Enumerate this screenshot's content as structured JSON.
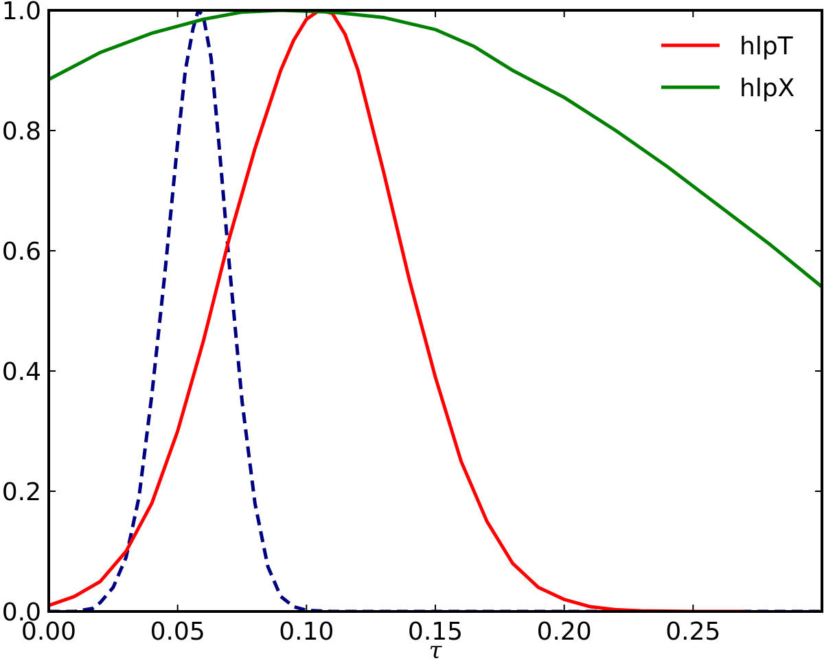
{
  "chart_data": {
    "type": "line",
    "title": "",
    "xlabel": "τ",
    "ylabel": "",
    "xlim": [
      0.0,
      0.3
    ],
    "ylim": [
      0.0,
      1.0
    ],
    "grid": false,
    "legend_position": "top-right",
    "x_ticks": [
      0.0,
      0.05,
      0.1,
      0.15,
      0.2,
      0.25
    ],
    "x_tick_labels": [
      "0.00",
      "0.05",
      "0.10",
      "0.15",
      "0.20",
      "0.25"
    ],
    "y_ticks": [
      0.0,
      0.2,
      0.4,
      0.6,
      0.8,
      1.0
    ],
    "y_tick_labels": [
      "0.0",
      "0.2",
      "0.4",
      "0.6",
      "0.8",
      "1.0"
    ],
    "series": [
      {
        "name": "",
        "color": "#000080",
        "dash": "dashed",
        "in_legend": false,
        "x": [
          0.0,
          0.01,
          0.017,
          0.02,
          0.025,
          0.03,
          0.035,
          0.04,
          0.045,
          0.05,
          0.053,
          0.056,
          0.058,
          0.06,
          0.063,
          0.066,
          0.07,
          0.075,
          0.08,
          0.085,
          0.09,
          0.095,
          0.1,
          0.11,
          0.3
        ],
        "y": [
          0.0,
          0.0,
          0.005,
          0.015,
          0.04,
          0.09,
          0.19,
          0.36,
          0.56,
          0.78,
          0.9,
          0.97,
          1.0,
          0.99,
          0.92,
          0.78,
          0.58,
          0.35,
          0.18,
          0.075,
          0.025,
          0.008,
          0.002,
          0.0,
          0.0
        ]
      },
      {
        "name": "hlpT",
        "color": "#ff0000",
        "dash": "solid",
        "in_legend": true,
        "x": [
          0.0,
          0.01,
          0.02,
          0.03,
          0.04,
          0.05,
          0.06,
          0.07,
          0.08,
          0.09,
          0.095,
          0.1,
          0.105,
          0.11,
          0.115,
          0.12,
          0.13,
          0.14,
          0.15,
          0.16,
          0.17,
          0.18,
          0.19,
          0.2,
          0.21,
          0.22,
          0.23,
          0.25,
          0.27
        ],
        "y": [
          0.01,
          0.025,
          0.05,
          0.1,
          0.18,
          0.3,
          0.45,
          0.62,
          0.77,
          0.9,
          0.95,
          0.985,
          1.0,
          0.995,
          0.96,
          0.9,
          0.73,
          0.55,
          0.39,
          0.25,
          0.15,
          0.08,
          0.04,
          0.02,
          0.008,
          0.003,
          0.001,
          0.0,
          0.0
        ]
      },
      {
        "name": "hlpX",
        "color": "#008000",
        "dash": "solid",
        "in_legend": true,
        "x": [
          0.0,
          0.02,
          0.04,
          0.06,
          0.075,
          0.09,
          0.11,
          0.13,
          0.15,
          0.165,
          0.18,
          0.2,
          0.22,
          0.24,
          0.26,
          0.28,
          0.3
        ],
        "y": [
          0.885,
          0.93,
          0.962,
          0.985,
          0.997,
          1.0,
          0.997,
          0.988,
          0.968,
          0.94,
          0.9,
          0.855,
          0.8,
          0.74,
          0.675,
          0.61,
          0.54
        ]
      }
    ]
  }
}
